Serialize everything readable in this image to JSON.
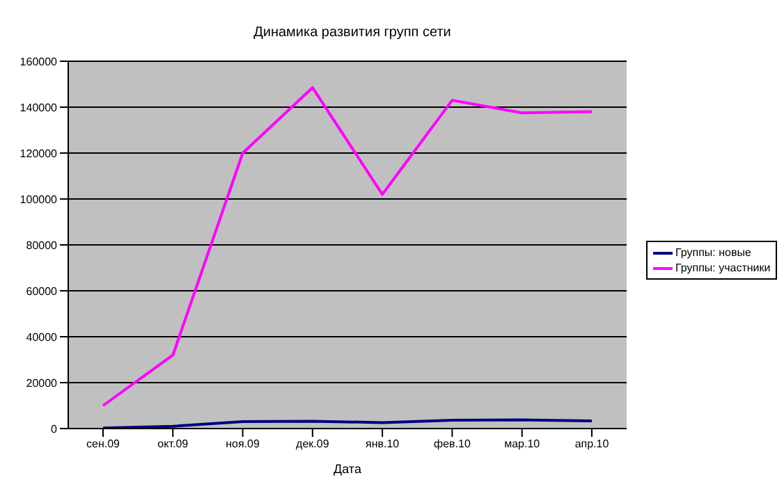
{
  "chart_data": {
    "type": "line",
    "title": "Динамика развития групп сети",
    "xlabel": "Дата",
    "categories": [
      "сен.09",
      "окт.09",
      "ноя.09",
      "дек.09",
      "янв.10",
      "фев.10",
      "мар.10",
      "апр.10"
    ],
    "ylim": [
      0,
      160000
    ],
    "yticks": [
      0,
      20000,
      40000,
      60000,
      80000,
      100000,
      120000,
      140000,
      160000
    ],
    "grid": "y",
    "legend": "right",
    "marker": "none",
    "line_style": "solid",
    "series": [
      {
        "name": "Группы: новые",
        "color": "#000080",
        "values": [
          200,
          1000,
          3000,
          3200,
          2600,
          3600,
          3800,
          3300
        ]
      },
      {
        "name": "Группы: участники",
        "color": "#ff00ff",
        "values": [
          10000,
          32000,
          120000,
          148500,
          102000,
          143000,
          137500,
          138000
        ]
      }
    ]
  }
}
